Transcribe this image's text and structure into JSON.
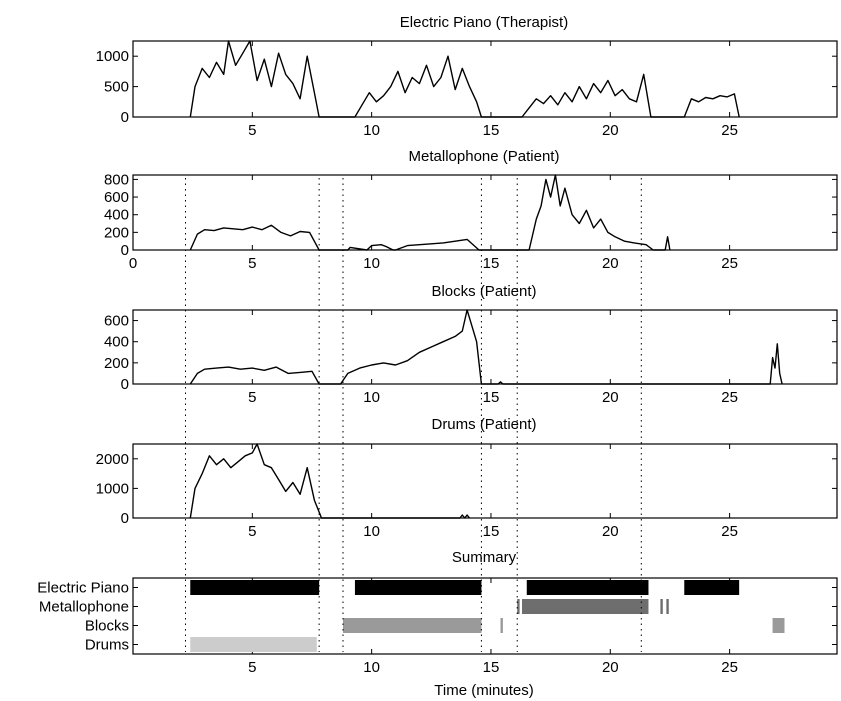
{
  "chart_data": [
    {
      "type": "line",
      "title": "Electric Piano (Therapist)",
      "xlim": [
        0,
        29.5
      ],
      "ylim": [
        0,
        1250
      ],
      "xticks": [
        5,
        10,
        15,
        20,
        25
      ],
      "yticks": [
        0,
        500,
        1000
      ],
      "series": [
        {
          "x": [
            2.4,
            2.6,
            2.9,
            3.2,
            3.5,
            3.8,
            4.0,
            4.3,
            4.6,
            4.9,
            5.2,
            5.5,
            5.8,
            6.1,
            6.4,
            6.7,
            7.0,
            7.3,
            7.6,
            7.8,
            9.3,
            9.6,
            9.9,
            10.2,
            10.5,
            10.8,
            11.1,
            11.4,
            11.7,
            12.0,
            12.3,
            12.6,
            12.9,
            13.2,
            13.5,
            13.8,
            14.1,
            14.4,
            14.6,
            16.3,
            16.6,
            16.9,
            17.2,
            17.5,
            17.8,
            18.1,
            18.4,
            18.7,
            19.0,
            19.3,
            19.6,
            19.9,
            20.2,
            20.5,
            20.8,
            21.1,
            21.4,
            21.7,
            23.1,
            23.4,
            23.7,
            24.0,
            24.3,
            24.6,
            24.9,
            25.2,
            25.4
          ],
          "values": [
            0,
            500,
            800,
            650,
            900,
            700,
            1250,
            850,
            1050,
            1250,
            600,
            950,
            500,
            1050,
            700,
            550,
            300,
            1000,
            400,
            0,
            0,
            200,
            400,
            250,
            350,
            500,
            750,
            400,
            650,
            550,
            850,
            500,
            650,
            1000,
            450,
            800,
            500,
            250,
            0,
            0,
            150,
            300,
            220,
            350,
            200,
            400,
            250,
            500,
            300,
            550,
            400,
            600,
            350,
            450,
            300,
            250,
            700,
            0,
            0,
            300,
            250,
            320,
            300,
            350,
            330,
            380,
            0
          ]
        }
      ]
    },
    {
      "type": "line",
      "title": "Metallophone (Patient)",
      "xlim": [
        0,
        29.5
      ],
      "ylim": [
        0,
        850
      ],
      "xticks": [
        0,
        5,
        10,
        15,
        20,
        25
      ],
      "yticks": [
        0,
        200,
        400,
        600,
        800
      ],
      "series": [
        {
          "x": [
            2.4,
            2.7,
            3.0,
            3.4,
            3.8,
            4.2,
            4.6,
            5.0,
            5.4,
            5.8,
            6.2,
            6.6,
            7.0,
            7.4,
            7.8,
            9.0,
            9.1,
            9.8,
            10.0,
            10.4,
            10.6,
            10.9,
            11.0,
            11.5,
            12.0,
            12.5,
            13.0,
            13.5,
            14.0,
            14.5,
            16.6,
            16.9,
            17.1,
            17.3,
            17.5,
            17.7,
            17.9,
            18.1,
            18.4,
            18.7,
            19.0,
            19.3,
            19.6,
            19.9,
            20.2,
            20.6,
            21.0,
            21.5,
            21.8,
            22.3,
            22.4,
            22.5
          ],
          "values": [
            0,
            180,
            230,
            220,
            250,
            240,
            230,
            260,
            230,
            280,
            200,
            160,
            210,
            200,
            0,
            0,
            30,
            0,
            50,
            60,
            40,
            0,
            0,
            50,
            60,
            70,
            80,
            100,
            120,
            0,
            0,
            350,
            500,
            800,
            600,
            850,
            500,
            700,
            400,
            300,
            450,
            250,
            350,
            200,
            150,
            100,
            80,
            60,
            0,
            0,
            150,
            0
          ]
        }
      ]
    },
    {
      "type": "line",
      "title": "Blocks (Patient)",
      "xlim": [
        0,
        29.5
      ],
      "ylim": [
        0,
        700
      ],
      "xticks": [
        5,
        10,
        15,
        20,
        25
      ],
      "yticks": [
        0,
        200,
        400,
        600
      ],
      "series": [
        {
          "x": [
            2.4,
            2.7,
            3.0,
            3.5,
            4.0,
            4.5,
            5.0,
            5.5,
            6.0,
            6.5,
            7.0,
            7.5,
            7.8,
            8.7,
            9.0,
            9.5,
            10.0,
            10.5,
            11.0,
            11.5,
            12.0,
            12.5,
            13.0,
            13.5,
            13.8,
            14.0,
            14.2,
            14.4,
            14.6,
            15.3,
            15.4,
            15.5,
            26.7,
            26.8,
            26.9,
            27.0,
            27.1,
            27.2
          ],
          "values": [
            0,
            100,
            140,
            150,
            160,
            140,
            150,
            130,
            160,
            100,
            110,
            120,
            0,
            0,
            100,
            150,
            180,
            200,
            180,
            220,
            300,
            350,
            400,
            450,
            500,
            700,
            550,
            400,
            0,
            0,
            20,
            0,
            0,
            250,
            150,
            380,
            100,
            0
          ]
        }
      ]
    },
    {
      "type": "line",
      "title": "Drums (Patient)",
      "xlim": [
        0,
        29.5
      ],
      "ylim": [
        0,
        2500
      ],
      "xticks": [
        5,
        10,
        15,
        20,
        25
      ],
      "yticks": [
        0,
        1000,
        2000
      ],
      "series": [
        {
          "x": [
            2.4,
            2.6,
            2.9,
            3.2,
            3.5,
            3.8,
            4.1,
            4.4,
            4.7,
            5.0,
            5.2,
            5.5,
            5.8,
            6.1,
            6.4,
            6.7,
            7.0,
            7.3,
            7.6,
            7.9,
            13.7,
            13.8,
            13.9,
            14.0,
            14.1
          ],
          "values": [
            0,
            1000,
            1500,
            2100,
            1800,
            2000,
            1700,
            1900,
            2100,
            2200,
            2500,
            1800,
            1700,
            1300,
            900,
            1200,
            800,
            1700,
            600,
            0,
            0,
            100,
            0,
            100,
            0
          ]
        }
      ]
    },
    {
      "type": "bar",
      "title": "Summary",
      "xlabel": "Time (minutes)",
      "xlim": [
        0,
        29.5
      ],
      "xticks": [
        5,
        10,
        15,
        20,
        25
      ],
      "categories": [
        "Electric Piano",
        "Metallophone",
        "Blocks",
        "Drums"
      ],
      "segments": [
        {
          "category": "Electric Piano",
          "start": 2.4,
          "end": 7.8,
          "color": "#000000"
        },
        {
          "category": "Electric Piano",
          "start": 9.3,
          "end": 14.6,
          "color": "#000000"
        },
        {
          "category": "Electric Piano",
          "start": 16.5,
          "end": 21.6,
          "color": "#000000"
        },
        {
          "category": "Electric Piano",
          "start": 23.1,
          "end": 25.4,
          "color": "#000000"
        },
        {
          "category": "Metallophone",
          "start": 16.1,
          "end": 16.2,
          "color": "#6e6e6e"
        },
        {
          "category": "Metallophone",
          "start": 16.3,
          "end": 21.6,
          "color": "#6e6e6e"
        },
        {
          "category": "Metallophone",
          "start": 22.1,
          "end": 22.2,
          "color": "#6e6e6e"
        },
        {
          "category": "Metallophone",
          "start": 22.35,
          "end": 22.45,
          "color": "#6e6e6e"
        },
        {
          "category": "Blocks",
          "start": 8.8,
          "end": 14.6,
          "color": "#9a9a9a"
        },
        {
          "category": "Blocks",
          "start": 15.4,
          "end": 15.5,
          "color": "#9a9a9a"
        },
        {
          "category": "Blocks",
          "start": 26.8,
          "end": 27.3,
          "color": "#9a9a9a"
        },
        {
          "category": "Drums",
          "start": 2.4,
          "end": 7.7,
          "color": "#cccccc"
        }
      ],
      "dividers_x": [
        2.2,
        7.8,
        8.8,
        14.6,
        16.1,
        21.3
      ]
    }
  ]
}
